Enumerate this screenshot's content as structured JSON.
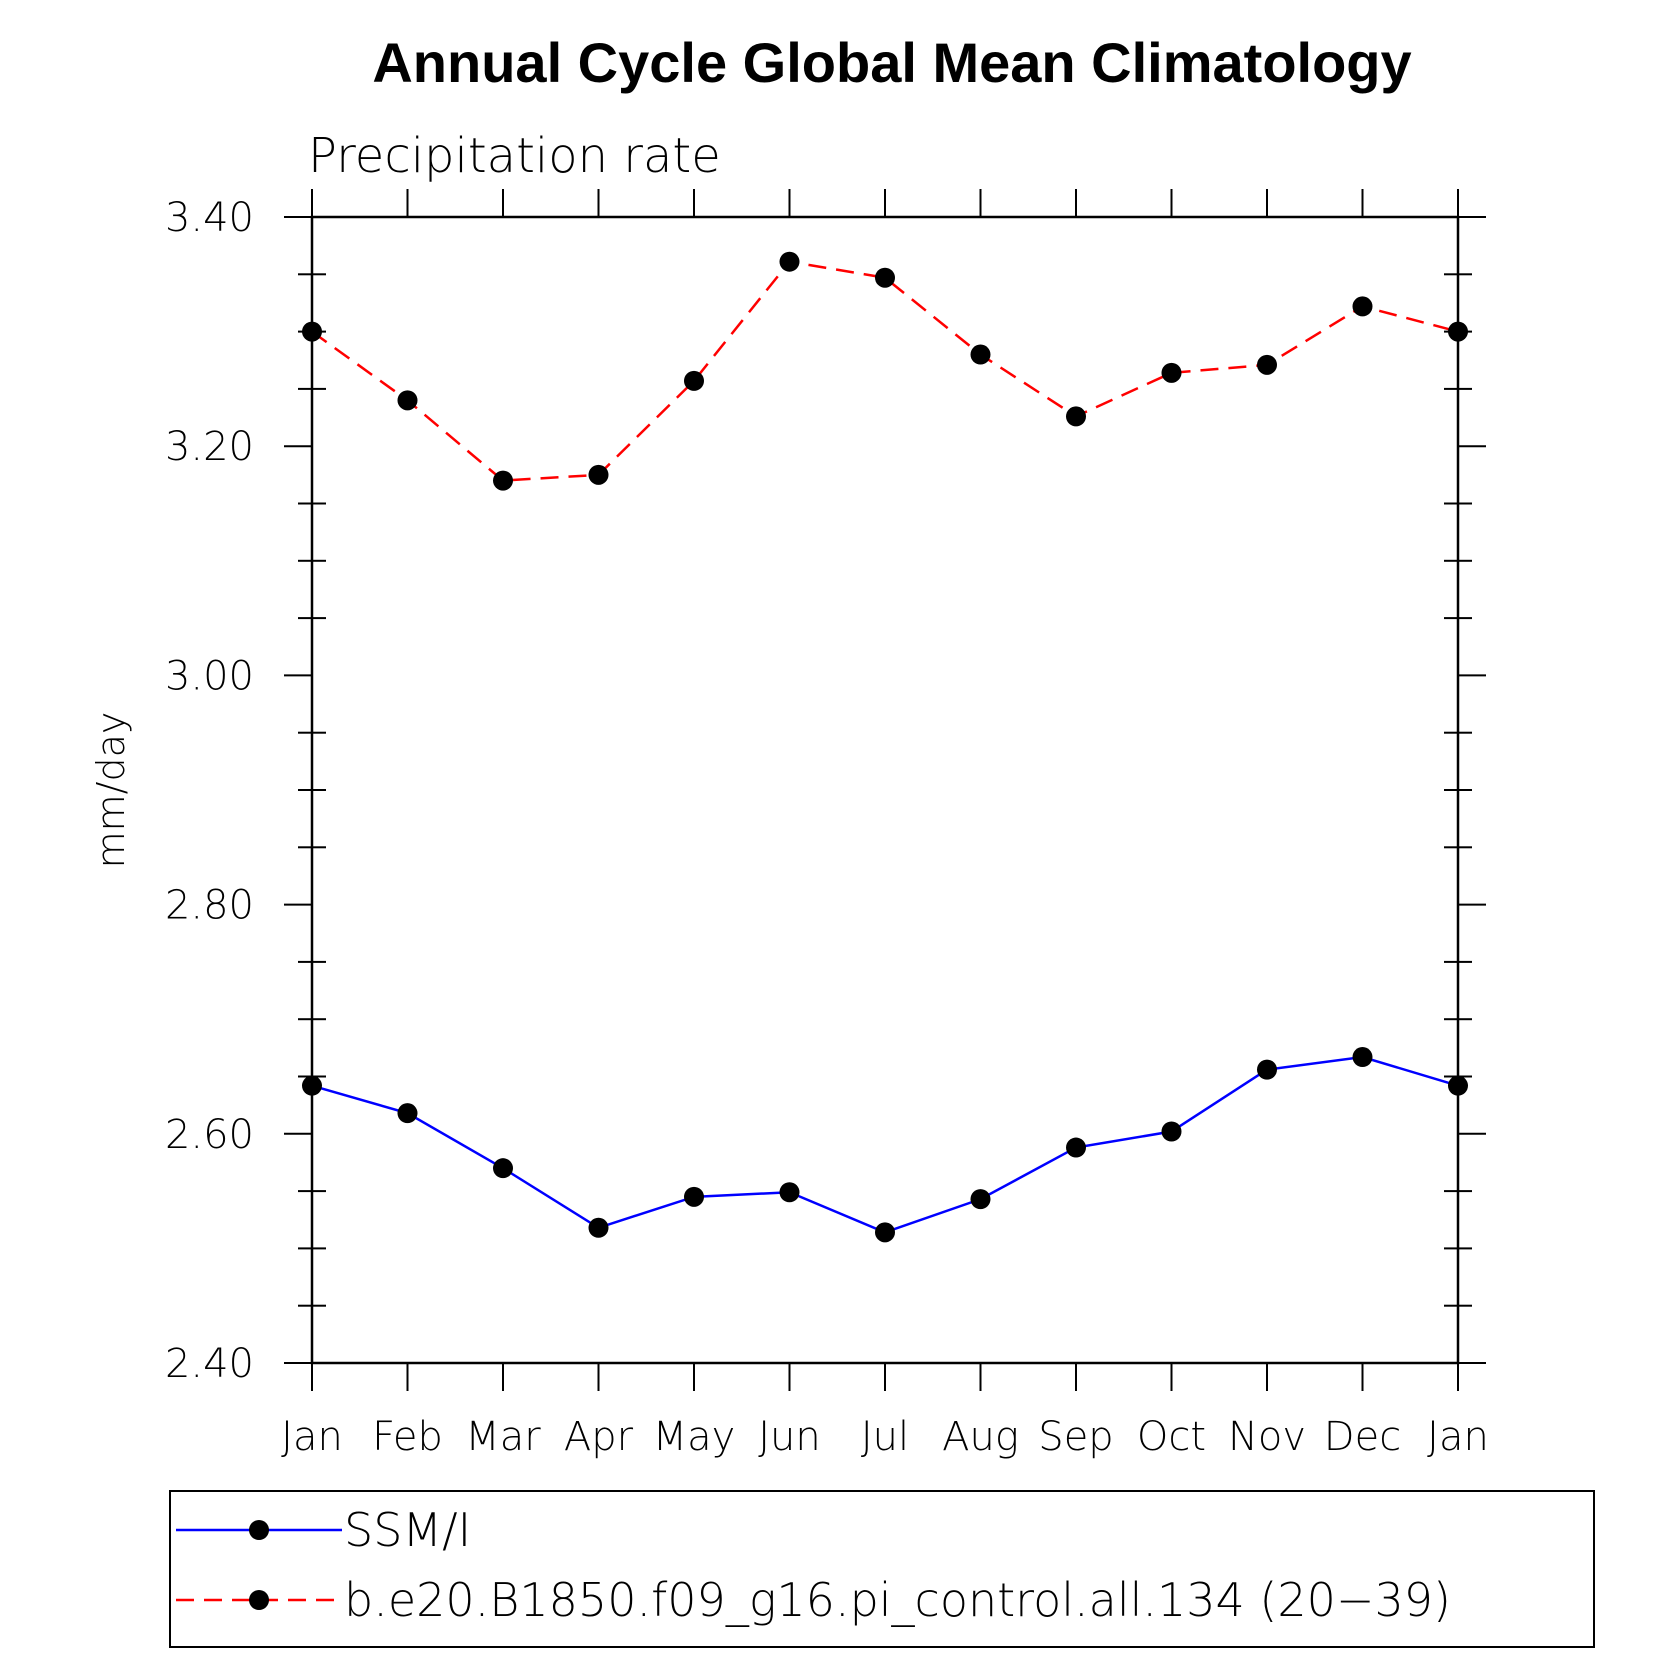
{
  "chart_data": {
    "type": "line",
    "title": "Annual Cycle Global Mean Climatology",
    "subtitle": "Precipitation rate",
    "xlabel": "",
    "ylabel": "mm/day",
    "categories": [
      "Jan",
      "Feb",
      "Mar",
      "Apr",
      "May",
      "Jun",
      "Jul",
      "Aug",
      "Sep",
      "Oct",
      "Nov",
      "Dec",
      "Jan"
    ],
    "ylim": [
      2.4,
      3.4
    ],
    "yticks": [
      "2.40",
      "2.60",
      "2.80",
      "3.00",
      "3.20",
      "3.40"
    ],
    "grid": false,
    "legend_position": "bottom",
    "series": [
      {
        "name": "SSM/I",
        "color": "#0000ff",
        "line_style": "solid",
        "values": [
          2.642,
          2.618,
          2.57,
          2.518,
          2.545,
          2.549,
          2.514,
          2.543,
          2.588,
          2.602,
          2.656,
          2.667,
          2.642
        ]
      },
      {
        "name": "b.e20.B1850.f09_g16.pi_control.all.134 (20−39)",
        "color": "#ff0000",
        "line_style": "dashed",
        "values": [
          3.3,
          3.24,
          3.17,
          3.175,
          3.257,
          3.361,
          3.347,
          3.28,
          3.226,
          3.264,
          3.271,
          3.322,
          3.3
        ]
      }
    ]
  }
}
